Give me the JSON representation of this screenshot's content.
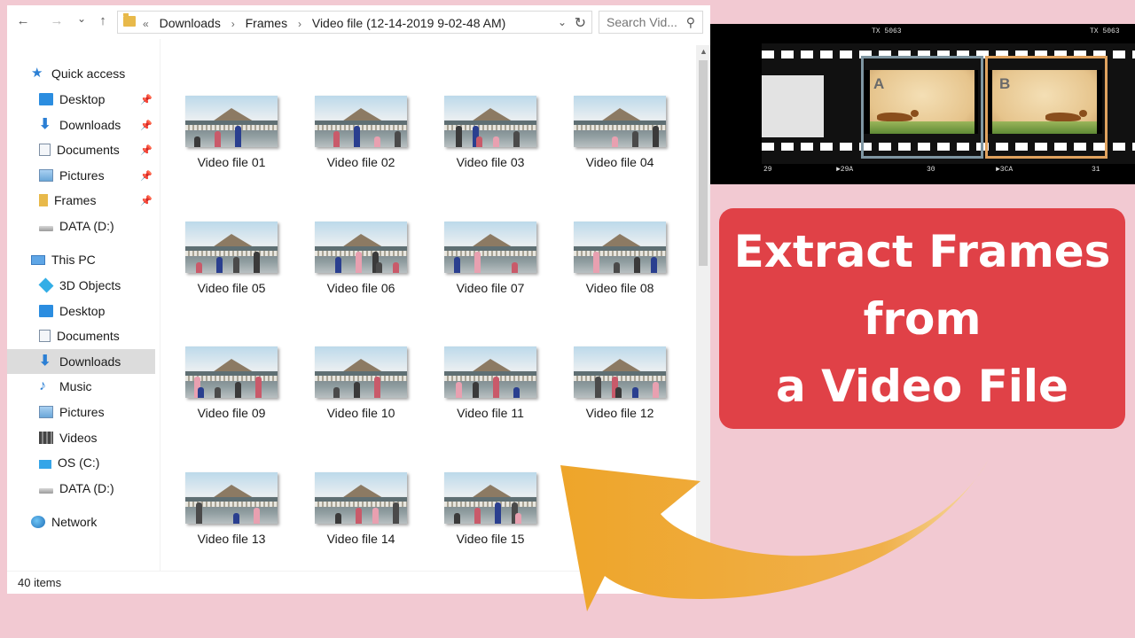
{
  "explorer": {
    "nav_back": "←",
    "nav_forward": "→",
    "nav_recent": "⌄",
    "nav_up": "↑",
    "breadcrumb": {
      "overflow": "«",
      "items": [
        "Downloads",
        "Frames",
        "Video file (12-14-2019 9-02-48 AM)"
      ],
      "separator": "›"
    },
    "address_dropdown": "⌄",
    "refresh": "↻",
    "search": {
      "placeholder": "Search Vid..."
    },
    "navpane": {
      "quick_access": {
        "label": "Quick access",
        "items": [
          "Desktop",
          "Downloads",
          "Documents",
          "Pictures",
          "Frames",
          "DATA (D:)"
        ]
      },
      "this_pc": {
        "label": "This PC",
        "items": [
          "3D Objects",
          "Desktop",
          "Documents",
          "Downloads",
          "Music",
          "Pictures",
          "Videos",
          "OS (C:)",
          "DATA (D:)"
        ],
        "selected": "Downloads"
      },
      "network": {
        "label": "Network"
      }
    },
    "files": [
      "Video file 01",
      "Video file 02",
      "Video file 03",
      "Video file 04",
      "Video file 05",
      "Video file 06",
      "Video file 07",
      "Video file 08",
      "Video file 09",
      "Video file 10",
      "Video file 11",
      "Video file 12",
      "Video file 13",
      "Video file 14",
      "Video file 15"
    ],
    "status": "40 items"
  },
  "filmstrip": {
    "edge_codes": [
      "TX 5063",
      "TX 5063"
    ],
    "frame_numbers": [
      "29",
      "►29A",
      "30",
      "►3CA",
      "31"
    ],
    "frame_labels": [
      "A",
      "B"
    ],
    "colors": {
      "frame_a_border": "#7f96a2",
      "frame_b_border": "#e0a25e"
    }
  },
  "title_card": {
    "lines": [
      "Extract Frames",
      "from",
      "a Video File"
    ],
    "background": "#e04147",
    "text_color": "#ffffff"
  },
  "arrow": {
    "color": "#eea52a",
    "direction": "pointing up-left toward file list"
  }
}
